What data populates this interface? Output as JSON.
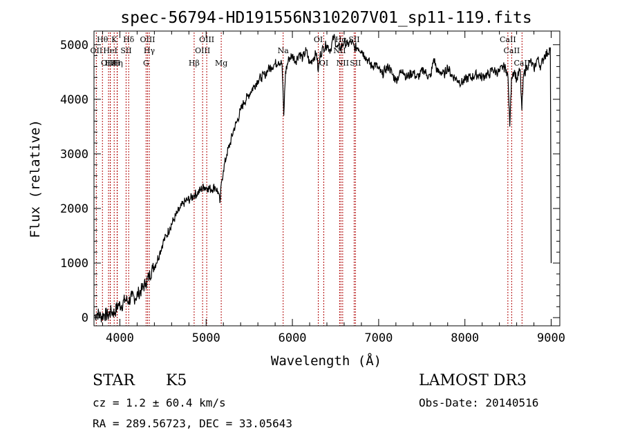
{
  "chart_data": {
    "type": "line",
    "title": "spec-56794-HD191556N310207V01_sp11-119.fits",
    "xlabel": "Wavelength (Å)",
    "ylabel": "Flux (relative)",
    "xlim": [
      3700,
      9100
    ],
    "ylim": [
      -150,
      5250
    ],
    "x_ticks": [
      4000,
      5000,
      6000,
      7000,
      8000,
      9000
    ],
    "y_ticks": [
      0,
      1000,
      2000,
      3000,
      4000,
      5000
    ],
    "grid": false,
    "series": [
      {
        "name": "Flux",
        "x": [
          3705,
          3740,
          3780,
          3820,
          3860,
          3900,
          3940,
          3980,
          4020,
          4060,
          4100,
          4140,
          4180,
          4220,
          4260,
          4300,
          4340,
          4380,
          4420,
          4460,
          4500,
          4540,
          4580,
          4620,
          4660,
          4700,
          4740,
          4780,
          4820,
          4860,
          4900,
          4940,
          4980,
          5020,
          5060,
          5100,
          5140,
          5160,
          5180,
          5200,
          5240,
          5280,
          5320,
          5360,
          5400,
          5440,
          5480,
          5520,
          5560,
          5600,
          5640,
          5680,
          5720,
          5760,
          5800,
          5840,
          5880,
          5900,
          5920,
          5960,
          6000,
          6040,
          6080,
          6120,
          6160,
          6200,
          6240,
          6280,
          6300,
          6320,
          6360,
          6400,
          6440,
          6480,
          6520,
          6560,
          6600,
          6640,
          6680,
          6720,
          6760,
          6800,
          6840,
          6880,
          6920,
          6960,
          7000,
          7040,
          7080,
          7120,
          7160,
          7200,
          7240,
          7280,
          7320,
          7360,
          7400,
          7440,
          7480,
          7520,
          7560,
          7600,
          7640,
          7680,
          7720,
          7760,
          7800,
          7840,
          7880,
          7920,
          7960,
          8000,
          8040,
          8080,
          8120,
          8160,
          8200,
          8240,
          8280,
          8320,
          8360,
          8400,
          8440,
          8480,
          8500,
          8520,
          8540,
          8560,
          8580,
          8600,
          8640,
          8660,
          8680,
          8720,
          8760,
          8800,
          8840,
          8880,
          8920,
          8960,
          8990,
          9000
        ],
        "values": [
          30,
          80,
          20,
          60,
          40,
          110,
          90,
          240,
          220,
          330,
          300,
          380,
          360,
          460,
          520,
          640,
          760,
          900,
          1000,
          1180,
          1380,
          1500,
          1650,
          1780,
          1900,
          2000,
          2100,
          2150,
          2180,
          2250,
          2280,
          2350,
          2400,
          2380,
          2350,
          2400,
          2300,
          2100,
          2500,
          2700,
          3000,
          3200,
          3450,
          3600,
          3800,
          3950,
          4050,
          4150,
          4250,
          4350,
          4400,
          4450,
          4550,
          4600,
          4650,
          4700,
          4650,
          3700,
          4500,
          4750,
          4800,
          4700,
          4850,
          4750,
          4900,
          4650,
          4750,
          4850,
          4500,
          4800,
          4950,
          5000,
          4900,
          5150,
          4950,
          4950,
          5050,
          5000,
          5050,
          4950,
          4950,
          4900,
          4800,
          4700,
          4600,
          4650,
          4550,
          4450,
          4550,
          4600,
          4450,
          4350,
          4450,
          4550,
          4400,
          4450,
          4500,
          4400,
          4450,
          4550,
          4450,
          4400,
          4750,
          4500,
          4500,
          4450,
          4600,
          4450,
          4400,
          4350,
          4300,
          4350,
          4400,
          4400,
          4450,
          4450,
          4400,
          4450,
          4450,
          4550,
          4500,
          4500,
          4600,
          4550,
          4400,
          3500,
          4400,
          4500,
          4500,
          4350,
          4550,
          3800,
          4450,
          4600,
          4700,
          4550,
          4750,
          4600,
          4800,
          4850,
          4950,
          1000
        ]
      }
    ],
    "lines": [
      {
        "label": "Hθ",
        "x": 3798,
        "row": 0
      },
      {
        "label": "OII",
        "x": 3727,
        "row": 1
      },
      {
        "label": "OIII",
        "x": 3869,
        "row": 2
      },
      {
        "label": "Hε",
        "x": 3889,
        "row": 2
      },
      {
        "label": "HeI",
        "x": 3889,
        "row": 1
      },
      {
        "label": "K",
        "x": 3934,
        "row": 0
      },
      {
        "label": "Hη",
        "x": 3970,
        "row": 2
      },
      {
        "label": "H",
        "x": 3968,
        "row": 2
      },
      {
        "label": "SII",
        "x": 4072,
        "row": 1
      },
      {
        "label": "Hδ",
        "x": 4102,
        "row": 0
      },
      {
        "label": "OIII",
        "x": 4321,
        "row": 0
      },
      {
        "label": "Hγ",
        "x": 4341,
        "row": 1
      },
      {
        "label": "G",
        "x": 4304,
        "row": 2
      },
      {
        "label": "Hβ",
        "x": 4861,
        "row": 2
      },
      {
        "label": "OIII",
        "x": 5007,
        "row": 0
      },
      {
        "label": "OIII",
        "x": 4959,
        "row": 1
      },
      {
        "label": "Mg",
        "x": 5175,
        "row": 2
      },
      {
        "label": "Na",
        "x": 5893,
        "row": 1
      },
      {
        "label": "OI",
        "x": 6300,
        "row": 0
      },
      {
        "label": "OI",
        "x": 6364,
        "row": 2
      },
      {
        "label": "NII",
        "x": 6548,
        "row": 1
      },
      {
        "label": "Hα",
        "x": 6563,
        "row": 0
      },
      {
        "label": "NII",
        "x": 6583,
        "row": 2
      },
      {
        "label": "SII",
        "x": 6716,
        "row": 0
      },
      {
        "label": "SII",
        "x": 6731,
        "row": 2
      },
      {
        "label": "CaII",
        "x": 8498,
        "row": 0
      },
      {
        "label": "CaII",
        "x": 8542,
        "row": 1
      },
      {
        "label": "CaII",
        "x": 8662,
        "row": 2
      }
    ]
  },
  "info": {
    "object_type": "STAR",
    "subclass": "K5",
    "survey": "LAMOST DR3",
    "redshift": "cz = 1.2 ± 60.4 km/s",
    "obs_date": "Obs-Date: 20140516",
    "coords": "RA = 289.56723, DEC =  33.05643"
  }
}
